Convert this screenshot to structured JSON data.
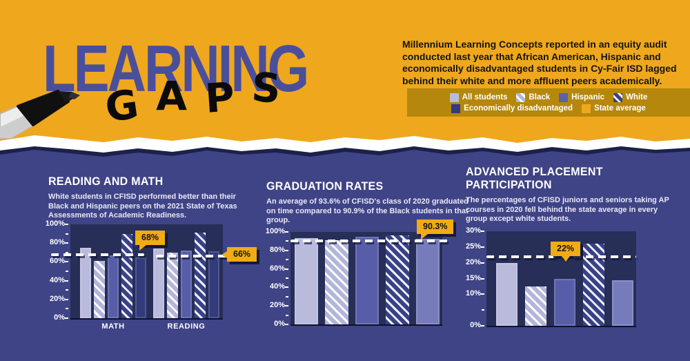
{
  "palette": {
    "gold": "#efa71e",
    "legend_band_gold": "#b5870d",
    "background_navy": "#3f4486",
    "plot_navy": "#272e57",
    "title_blue": "#4a4f9c",
    "ink_black": "#141310",
    "white": "#ffffff",
    "bar_all_students": "#b9badc",
    "bar_hispanic": "#575ea7",
    "bar_white_base": "#3a4187",
    "bar_econ_disadvantaged": "#333b7d",
    "bar_econ_light_variant": "#767cbb",
    "callout_gold": "#f0ac14",
    "torn_shadow_navy": "#1b2149"
  },
  "header": {
    "title_main": "LEARNING",
    "title_sub": "GAPS",
    "intro": "Millennium Learning Concepts reported in an equity audit conducted last year that African American, Hispanic and economically disadvantaged students in Cy-Fair ISD lagged behind their white and more affluent peers academically."
  },
  "legend": {
    "rows": [
      [
        {
          "label": "All students",
          "swatch": "all"
        },
        {
          "label": "Black",
          "swatch": "black"
        },
        {
          "label": "Hispanic",
          "swatch": "hispanic"
        },
        {
          "label": "White",
          "swatch": "white"
        }
      ],
      [
        {
          "label": "Economically disadvantaged",
          "swatch": "econ"
        },
        {
          "label": "State average",
          "swatch": "state"
        }
      ]
    ]
  },
  "chart_data": [
    {
      "type": "bar",
      "title": "READING AND MATH",
      "desc": "White students in CFISD performed better than their Black and Hispanic peers on the 2021 State of Texas Assessments of Academic Readiness.",
      "series": [
        "All students",
        "Black",
        "Hispanic",
        "White",
        "Economically disadvantaged"
      ],
      "categories": [
        "MATH",
        "READING"
      ],
      "groups": [
        {
          "label": "MATH",
          "values": [
            75,
            61,
            67,
            90,
            65
          ],
          "state_average": 68,
          "callout": "68%"
        },
        {
          "label": "READING",
          "values": [
            74,
            70,
            72,
            91,
            71
          ],
          "state_average": 66,
          "callout": "66%"
        }
      ],
      "ylim": [
        0,
        100
      ],
      "yticks": [
        0,
        20,
        40,
        60,
        80,
        100
      ],
      "grid": false,
      "legend_position": "top-right-band"
    },
    {
      "type": "bar",
      "title": "GRADUATION RATES",
      "desc": "An average of 93.6% of CFISD's class of 2020 graduated on time compared to 90.9% of the Black students in that group.",
      "series": [
        "All students",
        "Black",
        "Hispanic",
        "White",
        "Economically disadvantaged"
      ],
      "values": [
        93.6,
        90.9,
        94.5,
        96.5,
        92.5
      ],
      "state_average": 90.3,
      "callout": "90.3%",
      "ylim": [
        0,
        100
      ],
      "yticks": [
        0,
        20,
        40,
        60,
        80,
        100
      ],
      "grid": false
    },
    {
      "type": "bar",
      "title": "ADVANCED PLACEMENT PARTICIPATION",
      "desc": "The percentages of CFISD juniors and seniors taking AP courses in 2020 fell behind the state average in every group except white students.",
      "series": [
        "All students",
        "Black",
        "Hispanic",
        "White",
        "Economically disadvantaged"
      ],
      "values": [
        20,
        12.5,
        15,
        26,
        14.5
      ],
      "state_average": 22,
      "callout": "22%",
      "ylim": [
        0,
        30
      ],
      "yticks": [
        0,
        10,
        15,
        20,
        25,
        30
      ],
      "grid": false
    }
  ]
}
